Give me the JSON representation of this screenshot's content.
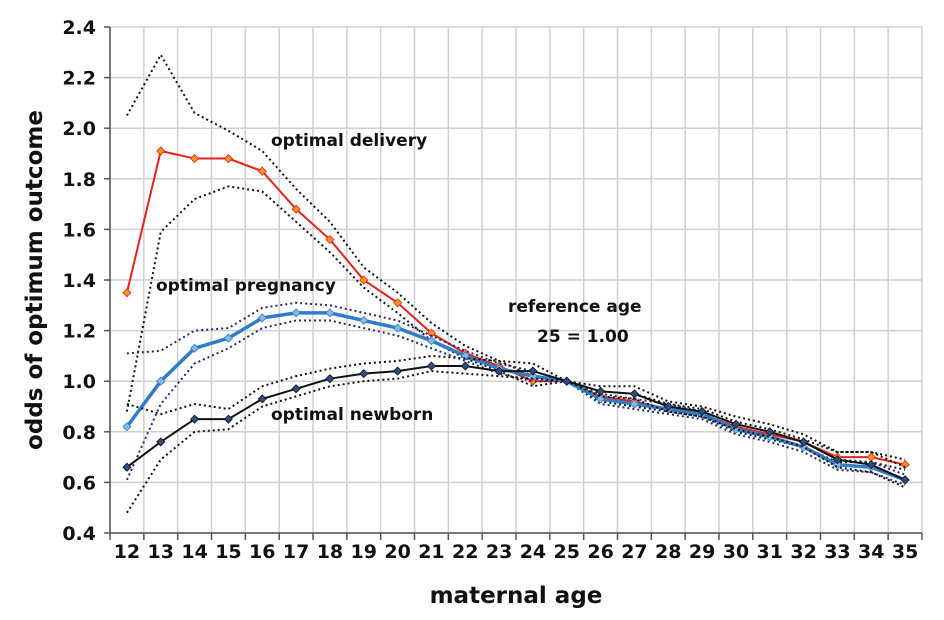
{
  "chart_data": {
    "type": "line",
    "title": "",
    "xlabel": "maternal age",
    "ylabel": "odds of optimum outcome",
    "ylim": [
      0.4,
      2.4
    ],
    "yticks": [
      "0.4",
      "0.6",
      "0.8",
      "1.0",
      "1.2",
      "1.4",
      "1.6",
      "1.8",
      "2.0",
      "2.2",
      "2.4"
    ],
    "grid": true,
    "categories": [
      "12",
      "13",
      "14",
      "15",
      "16",
      "17",
      "18",
      "19",
      "20",
      "21",
      "22",
      "23",
      "24",
      "25",
      "26",
      "27",
      "28",
      "29",
      "30",
      "31",
      "32",
      "33",
      "34",
      "35"
    ],
    "annotations": {
      "delivery": "optimal delivery",
      "pregnancy": "optimal pregnancy",
      "newborn": "optimal newborn",
      "reference_line1": "reference age",
      "reference_line2": "25 = 1.00"
    },
    "series": [
      {
        "key": "delivery",
        "color": "#e5231b",
        "marker_color": "#f7931e",
        "ci_color": "#111111",
        "values": [
          1.35,
          1.91,
          1.88,
          1.88,
          1.83,
          1.68,
          1.56,
          1.4,
          1.31,
          1.19,
          1.11,
          1.06,
          1.0,
          1.0,
          0.94,
          0.92,
          0.89,
          0.87,
          0.82,
          0.79,
          0.76,
          0.7,
          0.7,
          0.67
        ],
        "upper": [
          2.05,
          2.29,
          2.06,
          1.99,
          1.91,
          1.76,
          1.63,
          1.45,
          1.35,
          1.23,
          1.14,
          1.08,
          1.02,
          1.0,
          0.96,
          0.95,
          0.91,
          0.89,
          0.84,
          0.81,
          0.77,
          0.72,
          0.72,
          0.69
        ],
        "lower": [
          0.88,
          1.59,
          1.72,
          1.77,
          1.75,
          1.63,
          1.51,
          1.37,
          1.27,
          1.16,
          1.09,
          1.04,
          0.98,
          1.0,
          0.92,
          0.9,
          0.88,
          0.86,
          0.8,
          0.77,
          0.74,
          0.68,
          0.68,
          0.65
        ]
      },
      {
        "key": "pregnancy",
        "color": "#2e7dc6",
        "marker_color": "#8ab8e6",
        "ci_color": "#1f2a6b",
        "values": [
          0.82,
          1.0,
          1.13,
          1.17,
          1.25,
          1.27,
          1.27,
          1.24,
          1.21,
          1.16,
          1.1,
          1.05,
          1.02,
          1.0,
          0.93,
          0.91,
          0.89,
          0.87,
          0.81,
          0.78,
          0.74,
          0.67,
          0.66,
          0.61
        ],
        "upper": [
          1.11,
          1.12,
          1.2,
          1.21,
          1.29,
          1.31,
          1.3,
          1.27,
          1.24,
          1.18,
          1.12,
          1.07,
          1.04,
          1.0,
          0.95,
          0.93,
          0.91,
          0.88,
          0.83,
          0.8,
          0.76,
          0.69,
          0.68,
          0.63
        ],
        "lower": [
          0.61,
          0.91,
          1.07,
          1.13,
          1.21,
          1.24,
          1.24,
          1.21,
          1.18,
          1.13,
          1.08,
          1.03,
          1.0,
          1.0,
          0.91,
          0.89,
          0.87,
          0.85,
          0.79,
          0.76,
          0.72,
          0.65,
          0.64,
          0.59
        ]
      },
      {
        "key": "newborn",
        "color": "#111111",
        "marker_color": "#2f4d86",
        "ci_color": "#111111",
        "values": [
          0.66,
          0.76,
          0.85,
          0.85,
          0.93,
          0.97,
          1.01,
          1.03,
          1.04,
          1.06,
          1.06,
          1.04,
          1.04,
          1.0,
          0.96,
          0.95,
          0.9,
          0.88,
          0.83,
          0.8,
          0.76,
          0.69,
          0.67,
          0.61
        ],
        "upper": [
          0.91,
          0.87,
          0.91,
          0.89,
          0.98,
          1.02,
          1.05,
          1.07,
          1.08,
          1.1,
          1.09,
          1.08,
          1.07,
          1.0,
          0.98,
          0.98,
          0.92,
          0.9,
          0.86,
          0.83,
          0.79,
          0.72,
          0.72,
          0.66
        ],
        "lower": [
          0.48,
          0.69,
          0.8,
          0.81,
          0.9,
          0.94,
          0.98,
          1.0,
          1.01,
          1.04,
          1.03,
          1.02,
          1.01,
          1.0,
          0.94,
          0.93,
          0.88,
          0.86,
          0.81,
          0.78,
          0.74,
          0.66,
          0.64,
          0.58
        ]
      }
    ]
  }
}
